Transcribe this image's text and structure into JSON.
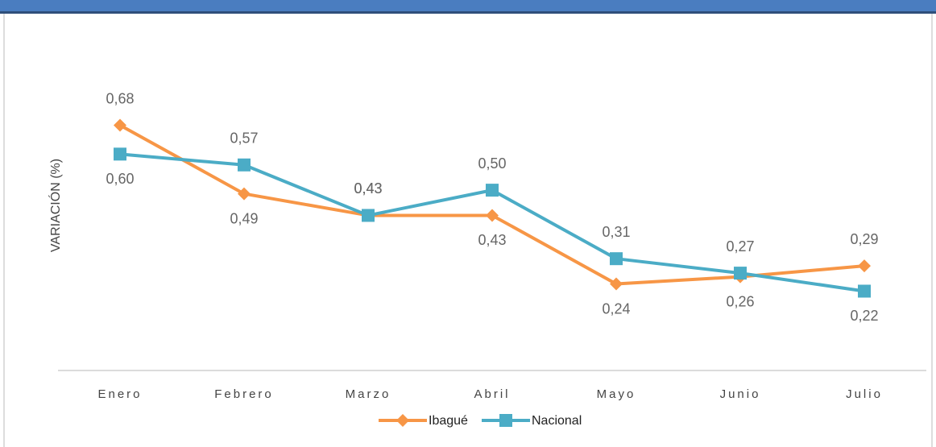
{
  "chart_data": {
    "type": "line",
    "y_axis_label": "VARIACIÓN (%)",
    "categories": [
      "Enero",
      "Febrero",
      "Marzo",
      "Abril",
      "Mayo",
      "Junio",
      "Julio"
    ],
    "series": [
      {
        "name": "Ibagué",
        "color": "#f79646",
        "marker": "diamond",
        "values": [
          0.68,
          0.49,
          0.43,
          0.43,
          0.24,
          0.26,
          0.29
        ],
        "value_labels": [
          "0,68",
          "0,49",
          "0,43",
          "0,43",
          "0,24",
          "0,26",
          "0,29"
        ]
      },
      {
        "name": "Nacional",
        "color": "#4bacc6",
        "marker": "square",
        "values": [
          0.6,
          0.57,
          0.43,
          0.5,
          0.31,
          0.27,
          0.22
        ],
        "value_labels": [
          "0,60",
          "0,57",
          "0,43",
          "0,50",
          "0,31",
          "0,27",
          "0,22"
        ]
      }
    ],
    "ylim": [
      0,
      0.9
    ],
    "legend": "bottom"
  }
}
